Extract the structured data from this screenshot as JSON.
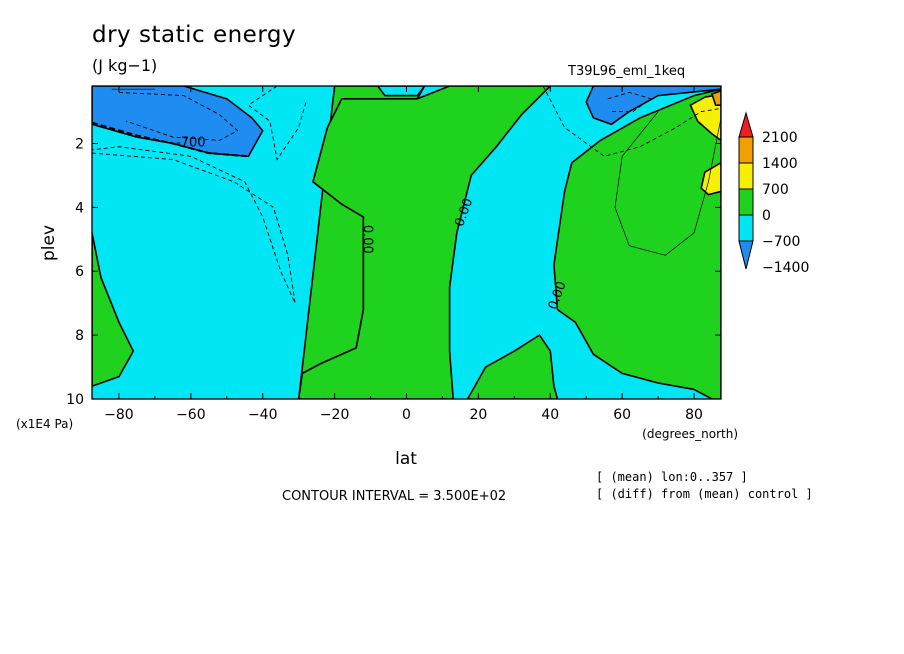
{
  "header": {
    "title": "dry static energy",
    "units": "(J kg−1)",
    "run_name": "T39L96_eml_1keq"
  },
  "footer": {
    "contour_interval": "CONTOUR INTERVAL = 3.500E+02",
    "notes": [
      "[ (mean) lon:0..357 ]",
      "[ (diff) from (mean) control ]"
    ]
  },
  "colors": {
    "red": "#f01e1e",
    "orange": "#f0a000",
    "yellow": "#f5f000",
    "green": "#1ed21e",
    "cyan": "#00e6f5",
    "blue": "#1e8cf0"
  },
  "chart_data": {
    "type": "contour",
    "xlabel": "lat",
    "xunits": "(degrees_north)",
    "ylabel": "plev",
    "yunits": "(x1E4 Pa)",
    "xlim": [
      -87.5,
      87.5
    ],
    "ylim": [
      10,
      0.2
    ],
    "xticks": [
      -80,
      -60,
      -40,
      -20,
      0,
      20,
      40,
      60,
      80
    ],
    "yticks": [
      2,
      4,
      6,
      8,
      10
    ],
    "colorbar": {
      "levels": [
        2100,
        1400,
        700,
        0,
        -700,
        -1400
      ],
      "colors": [
        "#f01e1e",
        "#f0a000",
        "#f5f000",
        "#1ed21e",
        "#00e6f5",
        "#1e8cf0"
      ]
    },
    "contour_labels": [
      {
        "text": "-700",
        "lat": -60,
        "plev": 2.1
      },
      {
        "text": "0.00",
        "lat": -12,
        "plev": 5.0
      },
      {
        "text": "0.00",
        "lat": 17,
        "plev": 4.2
      },
      {
        "text": "0.00",
        "lat": 43,
        "plev": 6.8
      }
    ],
    "regions": [
      {
        "fill": "cyan",
        "points": [
          [
            -87.5,
            0.2
          ],
          [
            87.5,
            0.2
          ],
          [
            87.5,
            10
          ],
          [
            -87.5,
            10
          ]
        ]
      },
      {
        "fill": "green",
        "points": [
          [
            -87.5,
            4.8
          ],
          [
            -85,
            6.2
          ],
          [
            -80,
            7.6
          ],
          [
            -76,
            8.5
          ],
          [
            -80,
            9.3
          ],
          [
            -87.5,
            9.6
          ]
        ]
      },
      {
        "fill": "green",
        "points": [
          [
            -20,
            0.2
          ],
          [
            5,
            0.2
          ],
          [
            3,
            0.6
          ],
          [
            -18,
            0.6
          ],
          [
            -22,
            1.5
          ],
          [
            -26,
            3.2
          ],
          [
            -18,
            3.9
          ],
          [
            -12,
            4.3
          ],
          [
            -12,
            7.2
          ],
          [
            -14,
            8.4
          ],
          [
            -24,
            8.9
          ],
          [
            -29,
            9.2
          ],
          [
            -30,
            10
          ]
        ]
      },
      {
        "fill": "green",
        "points": [
          [
            -18,
            0.6
          ],
          [
            3,
            0.6
          ],
          [
            12,
            0.2
          ],
          [
            40,
            0.2
          ],
          [
            32,
            1.1
          ],
          [
            25,
            2.1
          ],
          [
            18,
            3.0
          ],
          [
            14,
            4.8
          ],
          [
            12,
            6.5
          ],
          [
            12,
            8.5
          ],
          [
            13,
            10
          ],
          [
            -30,
            10
          ],
          [
            -29,
            9.2
          ],
          [
            -24,
            8.9
          ],
          [
            -14,
            8.4
          ],
          [
            -12,
            7.2
          ],
          [
            -12,
            4.3
          ],
          [
            -18,
            3.9
          ],
          [
            -26,
            3.2
          ],
          [
            -22,
            1.5
          ]
        ]
      },
      {
        "fill": "green",
        "points": [
          [
            17,
            10
          ],
          [
            22,
            9.0
          ],
          [
            30,
            8.5
          ],
          [
            37,
            8.0
          ],
          [
            40,
            8.5
          ],
          [
            41,
            9.6
          ],
          [
            42,
            10
          ]
        ]
      },
      {
        "fill": "green",
        "points": [
          [
            87.5,
            0.3
          ],
          [
            80,
            0.5
          ],
          [
            65,
            1.2
          ],
          [
            54,
            1.9
          ],
          [
            46,
            2.6
          ],
          [
            44,
            3.5
          ],
          [
            41,
            5.8
          ],
          [
            42,
            7.2
          ],
          [
            47,
            7.6
          ],
          [
            52,
            8.6
          ],
          [
            60,
            9.2
          ],
          [
            70,
            9.5
          ],
          [
            80,
            9.7
          ],
          [
            85,
            10
          ],
          [
            87.5,
            10
          ]
        ]
      },
      {
        "fill": "cyan",
        "points": [
          [
            -8,
            0.2
          ],
          [
            5,
            0.2
          ],
          [
            3,
            0.5
          ],
          [
            -6,
            0.5
          ]
        ]
      },
      {
        "fill": "yellow",
        "points": [
          [
            87.5,
            0.45
          ],
          [
            83,
            0.55
          ],
          [
            79,
            0.8
          ],
          [
            81,
            1.3
          ],
          [
            85,
            1.7
          ],
          [
            87.5,
            1.9
          ]
        ]
      },
      {
        "fill": "yellow",
        "points": [
          [
            87.5,
            2.6
          ],
          [
            83,
            2.9
          ],
          [
            82,
            3.4
          ],
          [
            84,
            3.6
          ],
          [
            87.5,
            3.5
          ]
        ]
      },
      {
        "fill": "orange",
        "points": [
          [
            87.5,
            0.35
          ],
          [
            85,
            0.45
          ],
          [
            86,
            0.8
          ],
          [
            87.5,
            0.8
          ]
        ]
      },
      {
        "fill": "blue",
        "points": [
          [
            -87.5,
            0.2
          ],
          [
            -62,
            0.2
          ],
          [
            -50,
            0.6
          ],
          [
            -43,
            1.2
          ],
          [
            -40,
            1.6
          ],
          [
            -44,
            2.4
          ],
          [
            -55,
            2.3
          ],
          [
            -65,
            2.0
          ],
          [
            -75,
            1.8
          ],
          [
            -87.5,
            1.4
          ]
        ]
      },
      {
        "fill": "blue",
        "points": [
          [
            52,
            0.2
          ],
          [
            87.5,
            0.2
          ],
          [
            87.5,
            0.3
          ],
          [
            70,
            0.5
          ],
          [
            62,
            1.0
          ],
          [
            57,
            1.4
          ],
          [
            52,
            1.2
          ],
          [
            50,
            0.7
          ]
        ]
      }
    ],
    "dashed_contours": [
      [
        [
          -87.5,
          2.3
        ],
        [
          -65,
          2.5
        ],
        [
          -48,
          3.2
        ],
        [
          -37,
          4.0
        ],
        [
          -33,
          5.5
        ],
        [
          -31,
          7.0
        ],
        [
          -35,
          6.0
        ],
        [
          -40,
          4.3
        ],
        [
          -45,
          3.2
        ],
        [
          -60,
          2.4
        ],
        [
          -80,
          2.1
        ],
        [
          -87.5,
          2.2
        ]
      ],
      [
        [
          -80,
          0.4
        ],
        [
          -62,
          0.5
        ],
        [
          -52,
          1.1
        ],
        [
          -47,
          1.6
        ],
        [
          -52,
          1.9
        ],
        [
          -65,
          1.8
        ],
        [
          -78,
          1.3
        ]
      ],
      [
        [
          -36,
          0.2
        ],
        [
          -44,
          0.8
        ],
        [
          -38,
          1.3
        ],
        [
          -36,
          2.5
        ],
        [
          -30,
          1.5
        ],
        [
          -28,
          0.7
        ]
      ],
      [
        [
          38,
          0.2
        ],
        [
          44,
          1.5
        ],
        [
          55,
          2.4
        ],
        [
          65,
          2.1
        ],
        [
          75,
          1.5
        ],
        [
          82,
          1.0
        ],
        [
          87.5,
          0.9
        ]
      ],
      [
        [
          56,
          0.6
        ],
        [
          62,
          0.4
        ],
        [
          68,
          0.6
        ],
        [
          63,
          1.0
        ],
        [
          57,
          1.0
        ]
      ]
    ],
    "thin_contours": [
      [
        [
          70,
          1.0
        ],
        [
          60,
          2.4
        ],
        [
          58,
          4.0
        ],
        [
          62,
          5.2
        ],
        [
          72,
          5.5
        ],
        [
          80,
          4.8
        ],
        [
          84,
          3.2
        ],
        [
          87.5,
          1.2
        ]
      ],
      [
        [
          -82,
          0.3
        ],
        [
          -76,
          0.3
        ],
        [
          -70,
          0.3
        ]
      ]
    ]
  }
}
